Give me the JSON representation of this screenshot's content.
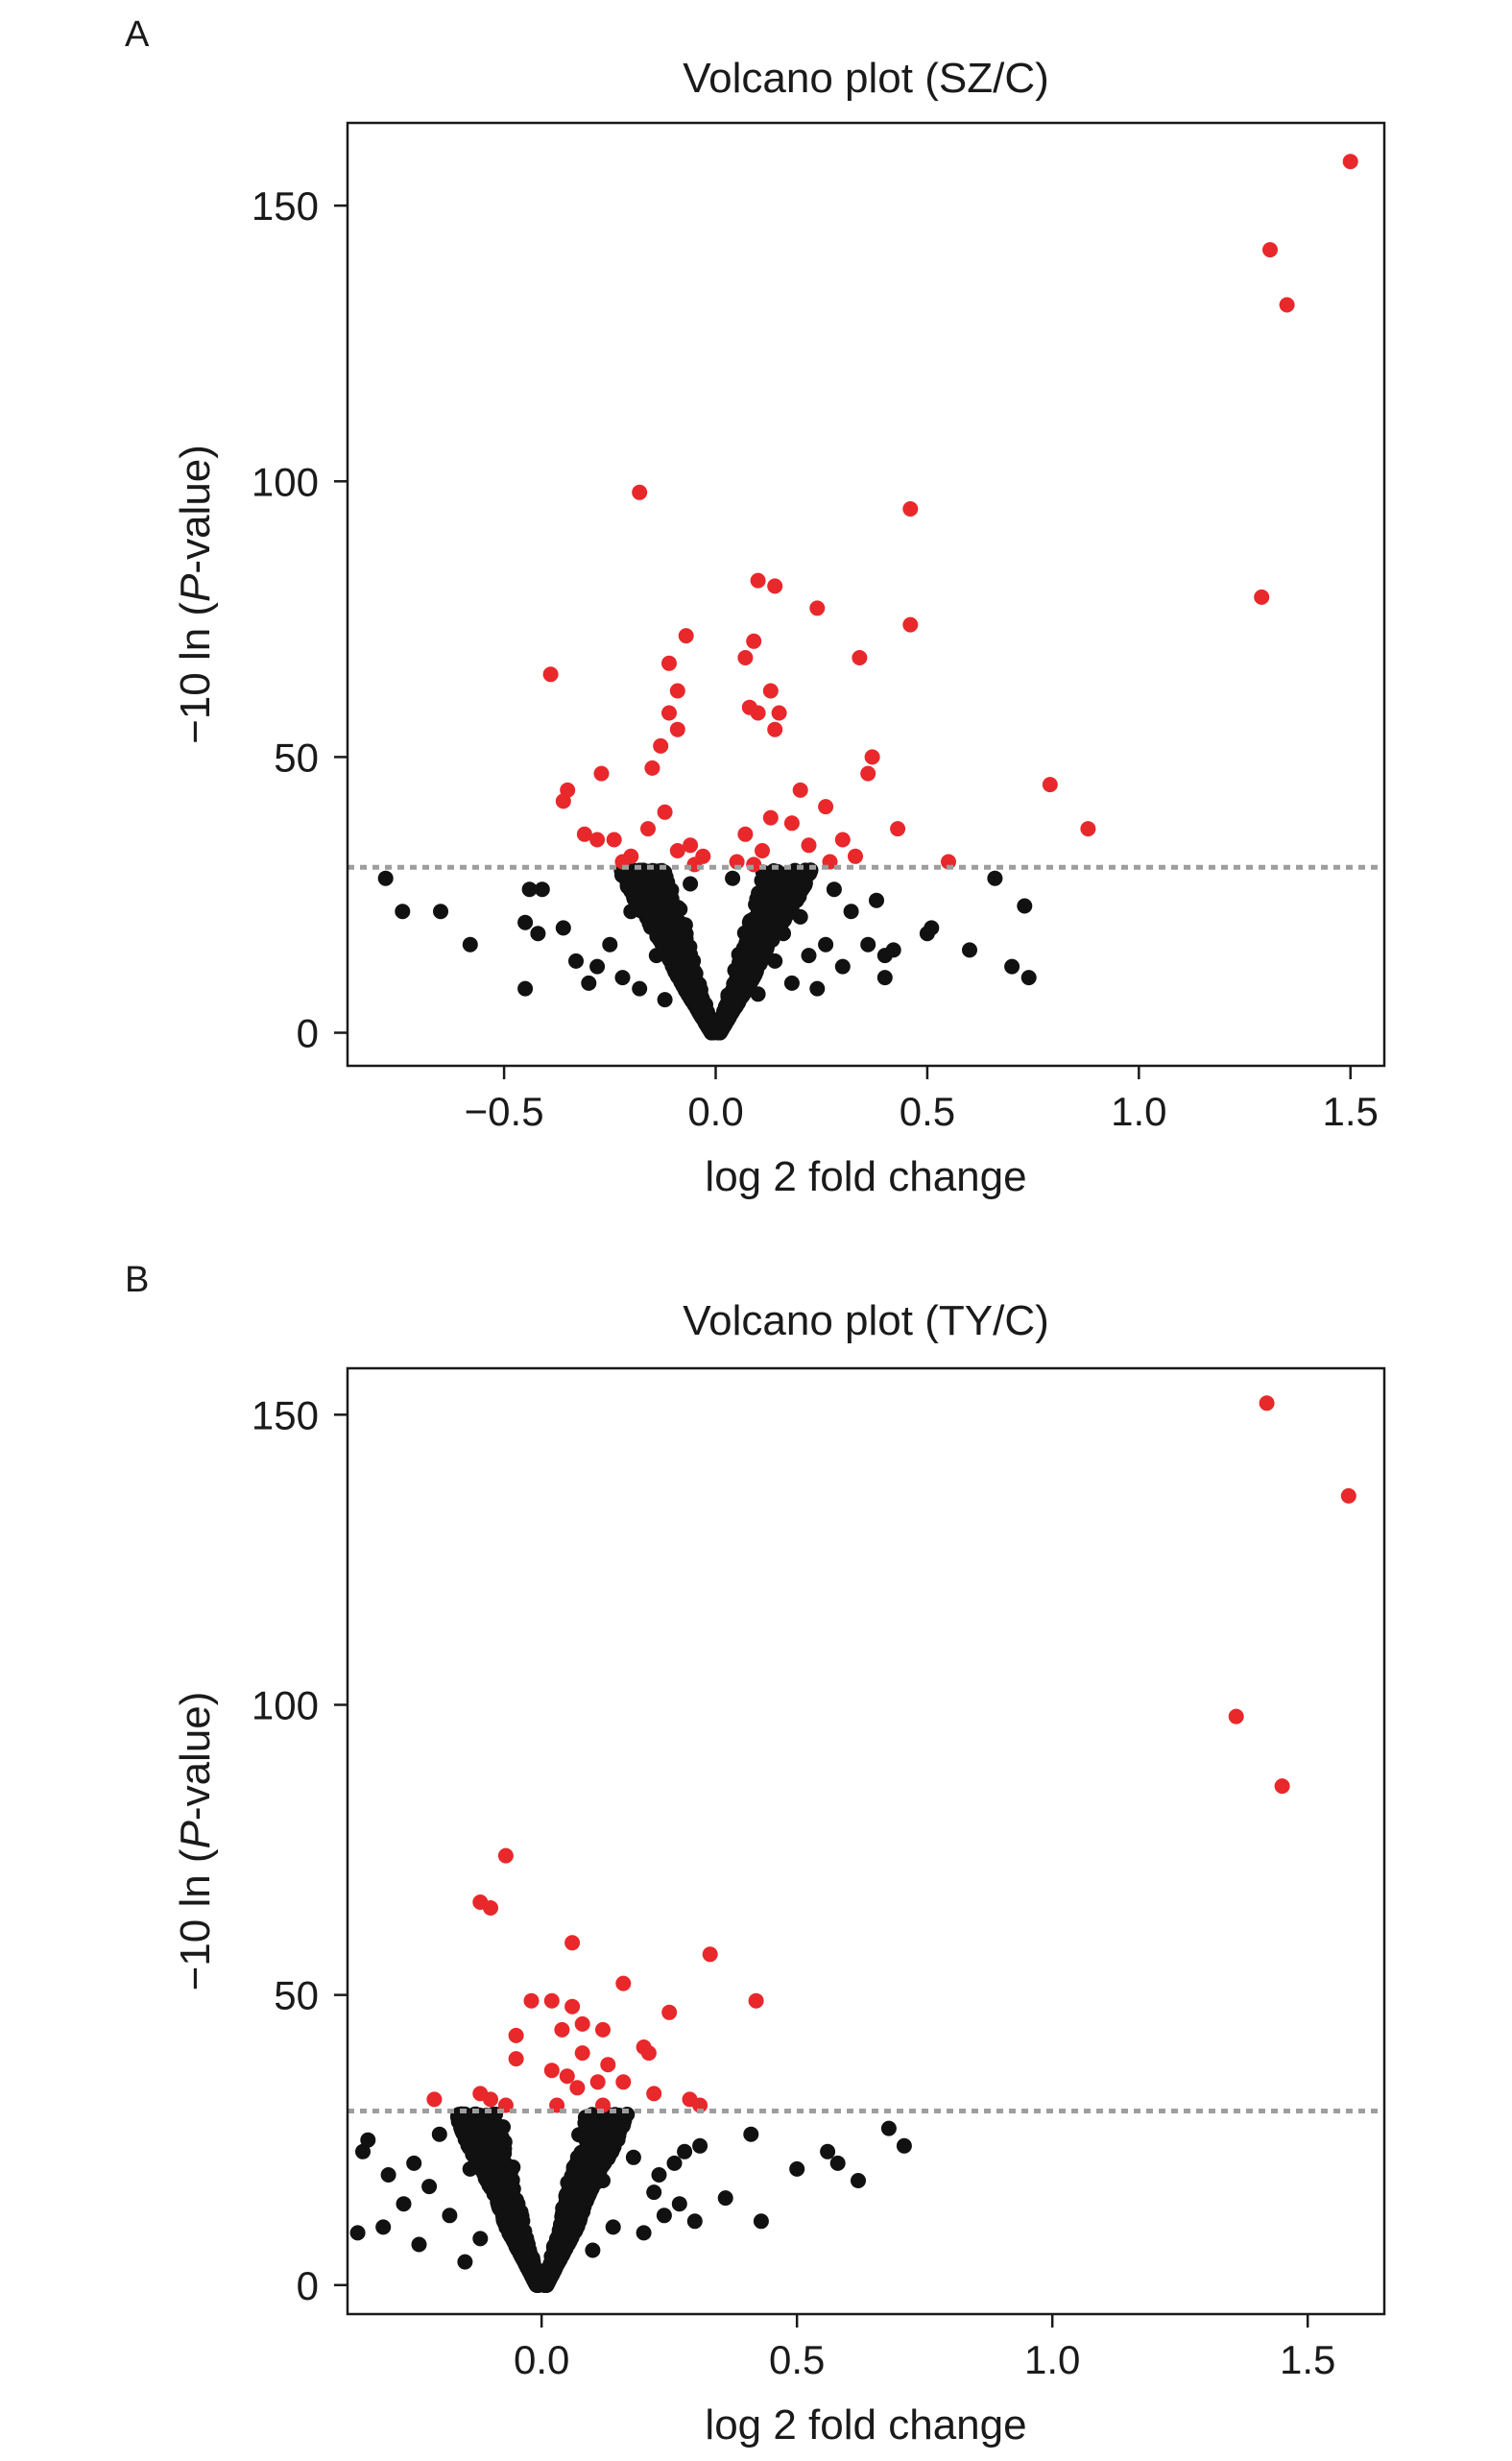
{
  "chart_data": [
    {
      "type": "scatter",
      "panel_label": "A",
      "title": "Volcano plot (SZ/C)",
      "xlabel": "log 2 fold change",
      "ylabel": "−10 ln (P-value)",
      "ylabel_parts": [
        "−10 ln (",
        "P",
        "-value)"
      ],
      "xlim": [
        -0.87,
        1.58
      ],
      "ylim": [
        -6,
        165
      ],
      "xticks": [
        -0.5,
        0.0,
        0.5,
        1.0,
        1.5
      ],
      "xtick_labels": [
        "−0.5",
        "0.0",
        "0.5",
        "1.0",
        "1.5"
      ],
      "yticks": [
        0,
        50,
        100,
        150
      ],
      "ytick_labels": [
        "0",
        "50",
        "100",
        "150"
      ],
      "threshold": 30,
      "grid": false,
      "legend": "none",
      "colors": {
        "significant": "#e8282b",
        "not_significant": "#111111",
        "threshold": "#9e9e9e"
      },
      "series": [
        {
          "color": "#e8282b",
          "points": [
            [
              1.5,
              158
            ],
            [
              1.31,
              142
            ],
            [
              1.35,
              132
            ],
            [
              1.29,
              79
            ],
            [
              -0.18,
              98
            ],
            [
              0.46,
              95
            ],
            [
              0.1,
              82
            ],
            [
              0.14,
              81
            ],
            [
              0.24,
              77
            ],
            [
              0.46,
              74
            ],
            [
              -0.07,
              72
            ],
            [
              0.09,
              71
            ],
            [
              0.07,
              68
            ],
            [
              0.34,
              68
            ],
            [
              -0.11,
              67
            ],
            [
              -0.39,
              65
            ],
            [
              -0.09,
              62
            ],
            [
              0.13,
              62
            ],
            [
              -0.11,
              58
            ],
            [
              0.08,
              59
            ],
            [
              0.1,
              58
            ],
            [
              0.15,
              58
            ],
            [
              -0.09,
              55
            ],
            [
              0.14,
              55
            ],
            [
              -0.13,
              52
            ],
            [
              0.37,
              50
            ],
            [
              -0.15,
              48
            ],
            [
              0.36,
              47
            ],
            [
              0.79,
              45
            ],
            [
              -0.35,
              44
            ],
            [
              -0.27,
              47
            ],
            [
              0.2,
              44
            ],
            [
              -0.36,
              42
            ],
            [
              0.43,
              37
            ],
            [
              0.88,
              37
            ],
            [
              0.26,
              41
            ],
            [
              0.3,
              35
            ],
            [
              -0.31,
              36
            ],
            [
              -0.28,
              35
            ],
            [
              -0.24,
              35
            ],
            [
              0.55,
              31
            ],
            [
              -0.2,
              32
            ],
            [
              0.33,
              32
            ],
            [
              -0.12,
              40
            ],
            [
              0.13,
              39
            ],
            [
              0.18,
              38
            ],
            [
              -0.16,
              37
            ],
            [
              0.07,
              36
            ],
            [
              -0.06,
              34
            ],
            [
              0.22,
              34
            ],
            [
              -0.09,
              33
            ],
            [
              0.11,
              33
            ],
            [
              -0.22,
              31
            ],
            [
              0.27,
              31
            ],
            [
              -0.03,
              32
            ],
            [
              0.05,
              31
            ],
            [
              -0.05,
              30.5
            ],
            [
              0.09,
              30.5
            ]
          ]
        },
        {
          "color": "#111111",
          "points": [
            [
              -0.78,
              28
            ],
            [
              -0.74,
              22
            ],
            [
              -0.65,
              22
            ],
            [
              -0.58,
              16
            ],
            [
              -0.45,
              8
            ],
            [
              -0.45,
              20
            ],
            [
              -0.44,
              26
            ],
            [
              -0.42,
              18
            ],
            [
              -0.41,
              26
            ],
            [
              -0.36,
              19
            ],
            [
              -0.33,
              13
            ],
            [
              -0.3,
              9
            ],
            [
              -0.28,
              12
            ],
            [
              -0.25,
              16
            ],
            [
              -0.22,
              10
            ],
            [
              -0.2,
              22
            ],
            [
              -0.18,
              8
            ],
            [
              -0.16,
              24
            ],
            [
              -0.14,
              14
            ],
            [
              -0.12,
              6
            ],
            [
              -0.1,
              18
            ],
            [
              -0.08,
              9
            ],
            [
              -0.06,
              27
            ],
            [
              -0.04,
              5
            ],
            [
              0.02,
              4
            ],
            [
              0.04,
              28
            ],
            [
              0.06,
              11
            ],
            [
              0.08,
              20
            ],
            [
              0.1,
              7
            ],
            [
              0.12,
              25
            ],
            [
              0.14,
              13
            ],
            [
              0.16,
              18
            ],
            [
              0.18,
              9
            ],
            [
              0.2,
              21
            ],
            [
              0.22,
              14
            ],
            [
              0.24,
              8
            ],
            [
              0.26,
              16
            ],
            [
              0.28,
              26
            ],
            [
              0.3,
              12
            ],
            [
              0.32,
              22
            ],
            [
              0.36,
              16
            ],
            [
              0.38,
              24
            ],
            [
              0.4,
              14
            ],
            [
              0.4,
              10
            ],
            [
              0.42,
              15
            ],
            [
              0.5,
              18
            ],
            [
              0.51,
              19
            ],
            [
              0.6,
              15
            ],
            [
              0.66,
              28
            ],
            [
              0.7,
              12
            ],
            [
              0.73,
              23
            ],
            [
              0.74,
              10
            ]
          ]
        }
      ],
      "dense_cloud": {
        "color": "#111111",
        "x_max_by_y": [
          [
            0,
            0.01
          ],
          [
            5,
            0.05
          ],
          [
            10,
            0.09
          ],
          [
            15,
            0.12
          ],
          [
            20,
            0.16
          ],
          [
            25,
            0.2
          ],
          [
            30,
            0.23
          ]
        ]
      }
    },
    {
      "type": "scatter",
      "panel_label": "B",
      "title": "Volcano plot (TY/C)",
      "xlabel": "log 2 fold change",
      "ylabel": "−10 ln (P-value)",
      "ylabel_parts": [
        "−10 ln (",
        "P",
        "-value)"
      ],
      "xlim": [
        -0.38,
        1.65
      ],
      "ylim": [
        -5,
        158
      ],
      "xticks": [
        0.0,
        0.5,
        1.0,
        1.5
      ],
      "xtick_labels": [
        "0.0",
        "0.5",
        "1.0",
        "1.5"
      ],
      "yticks": [
        0,
        50,
        100,
        150
      ],
      "ytick_labels": [
        "0",
        "50",
        "100",
        "150"
      ],
      "threshold": 30,
      "grid": false,
      "legend": "none",
      "colors": {
        "significant": "#e8282b",
        "not_significant": "#111111",
        "threshold": "#9e9e9e"
      },
      "series": [
        {
          "color": "#e8282b",
          "points": [
            [
              1.42,
              152
            ],
            [
              1.58,
              136
            ],
            [
              1.36,
              98
            ],
            [
              1.45,
              86
            ],
            [
              -0.07,
              74
            ],
            [
              -0.12,
              66
            ],
            [
              -0.1,
              65
            ],
            [
              0.06,
              59
            ],
            [
              0.33,
              57
            ],
            [
              0.16,
              52
            ],
            [
              -0.02,
              49
            ],
            [
              0.02,
              49
            ],
            [
              0.06,
              48
            ],
            [
              0.42,
              49
            ],
            [
              0.25,
              47
            ],
            [
              0.08,
              45
            ],
            [
              0.12,
              44
            ],
            [
              0.04,
              44
            ],
            [
              -0.05,
              43
            ],
            [
              0.2,
              41
            ],
            [
              0.21,
              40
            ],
            [
              0.08,
              40
            ],
            [
              -0.05,
              39
            ],
            [
              0.13,
              38
            ],
            [
              0.02,
              37
            ],
            [
              0.05,
              36
            ],
            [
              0.16,
              35
            ],
            [
              0.11,
              35
            ],
            [
              0.07,
              34
            ],
            [
              0.22,
              33
            ],
            [
              0.29,
              32
            ],
            [
              -0.12,
              33
            ],
            [
              -0.1,
              32
            ],
            [
              -0.07,
              31
            ],
            [
              -0.21,
              32
            ],
            [
              0.03,
              31
            ],
            [
              0.12,
              31
            ],
            [
              0.31,
              31
            ]
          ]
        },
        {
          "color": "#111111",
          "points": [
            [
              -0.36,
              9
            ],
            [
              -0.35,
              23
            ],
            [
              -0.34,
              25
            ],
            [
              -0.31,
              10
            ],
            [
              -0.3,
              19
            ],
            [
              -0.27,
              14
            ],
            [
              -0.25,
              21
            ],
            [
              -0.24,
              7
            ],
            [
              -0.22,
              17
            ],
            [
              -0.2,
              26
            ],
            [
              -0.18,
              12
            ],
            [
              -0.16,
              29
            ],
            [
              -0.15,
              4
            ],
            [
              -0.14,
              20
            ],
            [
              -0.12,
              8
            ],
            [
              -0.1,
              27
            ],
            [
              -0.08,
              15
            ],
            [
              0.08,
              26
            ],
            [
              0.1,
              6
            ],
            [
              0.12,
              18
            ],
            [
              0.14,
              10
            ],
            [
              0.16,
              29
            ],
            [
              0.18,
              22
            ],
            [
              0.2,
              9
            ],
            [
              0.22,
              16
            ],
            [
              0.23,
              19
            ],
            [
              0.24,
              12
            ],
            [
              0.26,
              21
            ],
            [
              0.27,
              14
            ],
            [
              0.28,
              23
            ],
            [
              0.3,
              11
            ],
            [
              0.31,
              24
            ],
            [
              0.36,
              15
            ],
            [
              0.41,
              26
            ],
            [
              0.43,
              11
            ],
            [
              0.5,
              20
            ],
            [
              0.56,
              23
            ],
            [
              0.58,
              21
            ],
            [
              0.62,
              18
            ],
            [
              0.68,
              27
            ],
            [
              0.71,
              24
            ]
          ]
        }
      ],
      "dense_cloud": {
        "color": "#111111",
        "x_max_by_y": [
          [
            0,
            0.01
          ],
          [
            5,
            0.04
          ],
          [
            10,
            0.07
          ],
          [
            15,
            0.09
          ],
          [
            20,
            0.12
          ],
          [
            25,
            0.15
          ],
          [
            30,
            0.17
          ]
        ]
      }
    }
  ]
}
